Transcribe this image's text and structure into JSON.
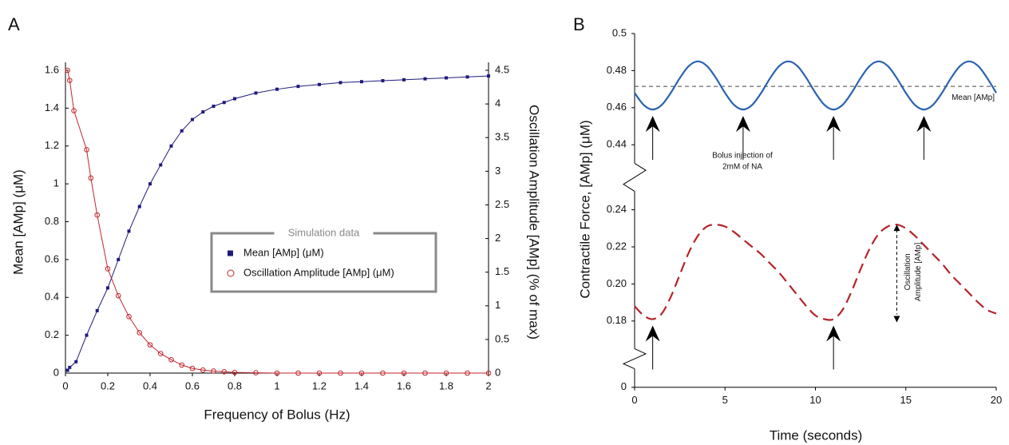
{
  "chart_data": [
    {
      "type": "line",
      "panel_label": "A",
      "xlabel": "Frequency of Bolus (Hz)",
      "ylabel": "Mean [AMp] (μM)",
      "y2label": "Oscillation Amplitude [AMp] (% of max)",
      "xlim": [
        0,
        2
      ],
      "xticks": [
        0,
        0.2,
        0.4,
        0.6,
        0.8,
        1,
        1.2,
        1.4,
        1.6,
        1.8,
        2
      ],
      "ylim": [
        0,
        1.6
      ],
      "yticks": [
        0,
        0.2,
        0.4,
        0.6,
        0.8,
        1,
        1.2,
        1.4,
        1.6
      ],
      "y2lim": [
        0,
        4.5
      ],
      "y2ticks": [
        0,
        0.5,
        1,
        1.5,
        2,
        2.5,
        3,
        3.5,
        4,
        4.5
      ],
      "legend_title": "Simulation data",
      "legend": "center",
      "series": [
        {
          "name": "Mean [AMp] (μM)",
          "color": "#1f1a7a",
          "marker": "square",
          "x": [
            0.01,
            0.02,
            0.05,
            0.1,
            0.15,
            0.2,
            0.25,
            0.3,
            0.35,
            0.4,
            0.45,
            0.5,
            0.55,
            0.6,
            0.65,
            0.7,
            0.75,
            0.8,
            0.9,
            1.0,
            1.1,
            1.2,
            1.3,
            1.4,
            1.5,
            1.6,
            1.7,
            1.8,
            1.9,
            2.0
          ],
          "values": [
            0.015,
            0.03,
            0.06,
            0.2,
            0.33,
            0.45,
            0.6,
            0.75,
            0.88,
            1.0,
            1.1,
            1.2,
            1.28,
            1.34,
            1.38,
            1.41,
            1.43,
            1.45,
            1.48,
            1.5,
            1.515,
            1.525,
            1.535,
            1.54,
            1.545,
            1.55,
            1.555,
            1.56,
            1.565,
            1.57
          ]
        },
        {
          "name": "Oscillation Amplitude [AMp] (μM)",
          "color": "#c0262d",
          "marker": "circle",
          "axis": "y2",
          "x": [
            0.01,
            0.02,
            0.04,
            0.1,
            0.12,
            0.15,
            0.2,
            0.25,
            0.3,
            0.35,
            0.4,
            0.45,
            0.5,
            0.55,
            0.6,
            0.65,
            0.7,
            0.75,
            0.8,
            0.9,
            1.0,
            1.1,
            1.2,
            1.3,
            1.4,
            1.5,
            1.6,
            1.7,
            1.8,
            1.9,
            2.0
          ],
          "values": [
            4.5,
            4.35,
            3.9,
            3.32,
            2.9,
            2.35,
            1.55,
            1.15,
            0.84,
            0.6,
            0.42,
            0.29,
            0.2,
            0.12,
            0.07,
            0.045,
            0.03,
            0.02,
            0.01,
            0.005,
            0,
            0,
            0,
            0,
            0,
            0,
            0,
            0,
            0,
            0,
            0
          ]
        }
      ]
    },
    {
      "type": "line",
      "panel_label": "B",
      "xlabel": "Time (seconds)",
      "ylabel": "Contractile Force, [AMp] (μM)",
      "xlim": [
        0,
        20
      ],
      "xticks": [
        0,
        5,
        10,
        15,
        20
      ],
      "ylim_segments": [
        [
          0.43,
          0.5
        ],
        [
          0.165,
          0.25
        ],
        [
          0,
          0.01
        ]
      ],
      "yticks": [
        0,
        0.18,
        {
          "value": 0.2,
          "label": "0.20"
        },
        0.22,
        0.24,
        0.44,
        0.46,
        0.48,
        0.5
      ],
      "x": [
        0,
        0.5,
        1,
        1.5,
        2,
        2.5,
        3,
        3.5,
        4,
        4.5,
        5,
        5.5,
        6,
        6.5,
        7,
        7.5,
        8,
        8.5,
        9,
        9.5,
        10,
        10.5,
        11,
        11.5,
        12,
        12.5,
        13,
        13.5,
        14,
        14.5,
        15,
        15.5,
        16,
        16.5,
        17,
        17.5,
        18,
        18.5,
        19,
        19.5,
        20
      ],
      "series": [
        {
          "color": "#2a62b0",
          "style": "solid",
          "values": [
            0.468,
            0.4615,
            0.459,
            0.4615,
            0.468,
            0.476,
            0.4825,
            0.485,
            0.4825,
            0.476,
            0.468,
            0.4615,
            0.459,
            0.4615,
            0.468,
            0.476,
            0.4825,
            0.485,
            0.4825,
            0.476,
            0.468,
            0.4615,
            0.459,
            0.4615,
            0.468,
            0.476,
            0.4825,
            0.485,
            0.4825,
            0.476,
            0.468,
            0.4615,
            0.459,
            0.4615,
            0.468,
            0.476,
            0.4825,
            0.485,
            0.4825,
            0.476,
            0.468
          ]
        },
        {
          "color": "#b5232a",
          "style": "dashed",
          "values": [
            0.188,
            0.183,
            0.181,
            0.184,
            0.193,
            0.205,
            0.217,
            0.226,
            0.231,
            0.232,
            0.231,
            0.228,
            0.224,
            0.22,
            0.216,
            0.211,
            0.206,
            0.2,
            0.194,
            0.188,
            0.183,
            0.181,
            0.181,
            0.186,
            0.196,
            0.208,
            0.219,
            0.227,
            0.231,
            0.232,
            0.23,
            0.226,
            0.221,
            0.216,
            0.211,
            0.205,
            0.2,
            0.195,
            0.19,
            0.186,
            0.184
          ]
        }
      ],
      "mean_line": {
        "value": 0.4715,
        "label": "Mean [AMp]"
      },
      "bolus_x_upper": [
        1,
        6,
        11,
        16
      ],
      "bolus_x_lower": [
        1,
        11
      ],
      "bolus_note": [
        "Bolus injection of",
        "2mM of NA"
      ],
      "amplitude_note": [
        "Oscillation",
        "Amplitude [AMp]"
      ]
    }
  ]
}
